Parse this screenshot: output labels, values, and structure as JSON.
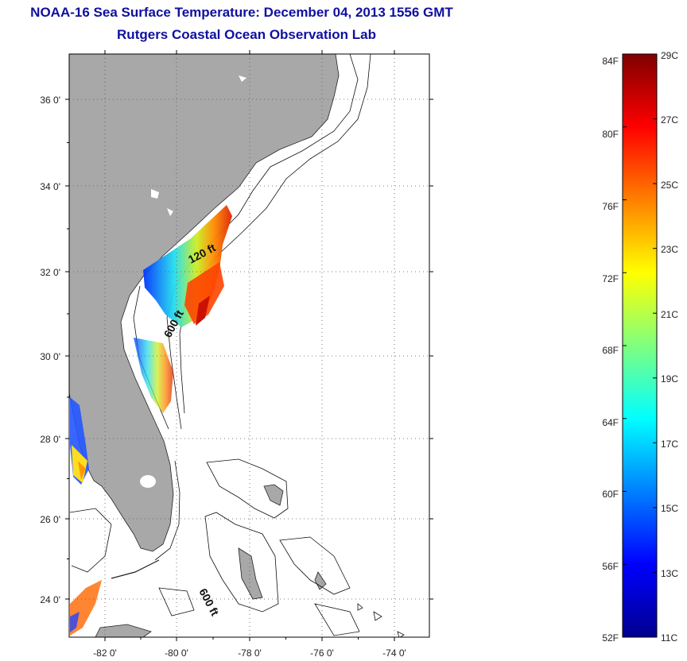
{
  "title": {
    "line1": "NOAA-16 Sea Surface Temperature:  December 04, 2013 1556 GMT",
    "line2": "Rutgers Coastal Ocean Observation Lab"
  },
  "map": {
    "lon_ticks": [
      "-82 0'",
      "-80 0'",
      "-78 0'",
      "-76 0'",
      "-74 0'"
    ],
    "lat_ticks": [
      "36 0'",
      "34 0'",
      "32 0'",
      "30 0'",
      "28 0'",
      "26 0'",
      "24 0'"
    ],
    "contour_labels": [
      "120 ft",
      "600 ft",
      "600 ft"
    ],
    "land_color": "#a8a8a8",
    "grid": "dotted"
  },
  "colorbar": {
    "fahrenheit": [
      "84F",
      "80F",
      "76F",
      "72F",
      "68F",
      "64F",
      "60F",
      "56F",
      "52F"
    ],
    "celsius": [
      "29C",
      "27C",
      "25C",
      "23C",
      "21C",
      "19C",
      "17C",
      "15C",
      "13C",
      "11C"
    ],
    "colormap": "jet",
    "range_c": [
      11,
      29
    ]
  }
}
